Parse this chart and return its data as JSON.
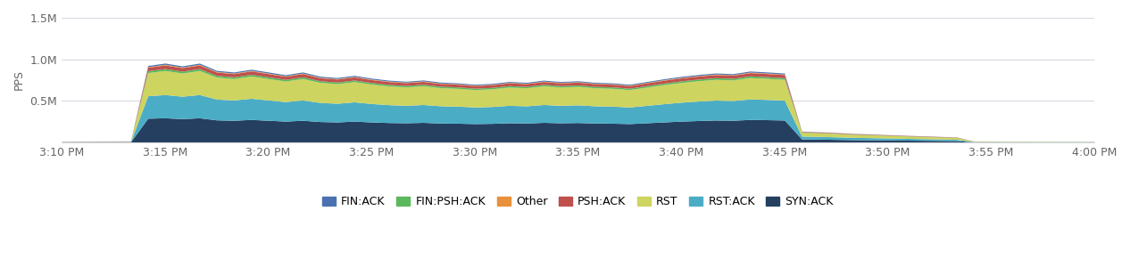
{
  "ylabel": "PPS",
  "ylim": [
    0,
    1500000
  ],
  "yticks": [
    0,
    500000,
    1000000,
    1500000
  ],
  "ytick_labels": [
    "",
    "0.5M",
    "1.0M",
    "1.5M"
  ],
  "background_color": "#ffffff",
  "grid_color": "#d8d8e0",
  "time_labels": [
    "3:10 PM",
    "3:15 PM",
    "3:20 PM",
    "3:25 PM",
    "3:30 PM",
    "3:35 PM",
    "3:40 PM",
    "3:45 PM",
    "3:50 PM",
    "3:55 PM",
    "4:00 PM"
  ],
  "series_order": [
    "SYN:ACK",
    "RST:ACK",
    "RST",
    "FIN:PSH:ACK",
    "PSH:ACK",
    "Other",
    "FIN:ACK"
  ],
  "colors": {
    "FIN:ACK": "#4a72b0",
    "FIN:PSH:ACK": "#5cb85c",
    "Other": "#e8913a",
    "PSH:ACK": "#c0504d",
    "RST": "#cdd45f",
    "RST:ACK": "#4bacc6",
    "SYN:ACK": "#243f60"
  },
  "legend_order": [
    "FIN:ACK",
    "FIN:PSH:ACK",
    "Other",
    "PSH:ACK",
    "RST",
    "RST:ACK",
    "SYN:ACK"
  ],
  "x_values": [
    0,
    1,
    2,
    3,
    4,
    5,
    6,
    7,
    8,
    9,
    10,
    11,
    12,
    13,
    14,
    15,
    16,
    17,
    18,
    19,
    20,
    21,
    22,
    23,
    24,
    25,
    26,
    27,
    28,
    29,
    30,
    31,
    32,
    33,
    34,
    35,
    36,
    37,
    38,
    39,
    40,
    41,
    42,
    43,
    44,
    45,
    46,
    47,
    48,
    49,
    50,
    51,
    52,
    53,
    54,
    55,
    56,
    57,
    58,
    59,
    60
  ],
  "data": {
    "SYN:ACK": [
      4000,
      4500,
      5000,
      5500,
      6000,
      290000,
      295000,
      285000,
      295000,
      270000,
      265000,
      275000,
      265000,
      255000,
      265000,
      250000,
      245000,
      255000,
      245000,
      238000,
      235000,
      240000,
      232000,
      230000,
      225000,
      228000,
      235000,
      232000,
      240000,
      235000,
      238000,
      232000,
      230000,
      225000,
      235000,
      245000,
      255000,
      262000,
      268000,
      265000,
      275000,
      272000,
      268000,
      40000,
      38000,
      35000,
      32000,
      30000,
      28000,
      26000,
      24000,
      22000,
      20000,
      5000,
      4500,
      4000,
      4000,
      4000,
      4000,
      4000,
      4000
    ],
    "RST:ACK": [
      3000,
      3200,
      3400,
      3600,
      3800,
      270000,
      280000,
      270000,
      280000,
      250000,
      245000,
      255000,
      245000,
      235000,
      245000,
      230000,
      225000,
      232000,
      222000,
      215000,
      210000,
      215000,
      208000,
      205000,
      200000,
      203000,
      210000,
      207000,
      215000,
      210000,
      213000,
      207000,
      205000,
      200000,
      210000,
      220000,
      228000,
      235000,
      240000,
      238000,
      247000,
      244000,
      240000,
      35000,
      33000,
      31000,
      28000,
      26000,
      24000,
      22000,
      20000,
      18000,
      16000,
      4000,
      3600,
      3200,
      3000,
      3000,
      3000,
      3000,
      3000
    ],
    "RST": [
      2000,
      2200,
      2400,
      2600,
      2800,
      280000,
      290000,
      280000,
      290000,
      265000,
      258000,
      268000,
      258000,
      248000,
      258000,
      242000,
      237000,
      244000,
      234000,
      226000,
      222000,
      226000,
      218000,
      215000,
      210000,
      213000,
      220000,
      217000,
      225000,
      220000,
      222000,
      217000,
      215000,
      210000,
      220000,
      230000,
      238000,
      245000,
      250000,
      248000,
      258000,
      254000,
      250000,
      45000,
      43000,
      40000,
      36000,
      34000,
      31000,
      28000,
      26000,
      24000,
      22000,
      5000,
      4500,
      4000,
      3500,
      3000,
      3000,
      3000,
      3000
    ],
    "FIN:PSH:ACK": [
      500,
      550,
      600,
      650,
      700,
      22000,
      23000,
      22000,
      23000,
      21000,
      20500,
      21200,
      20500,
      19800,
      20500,
      19200,
      18800,
      19400,
      18600,
      18000,
      17600,
      18000,
      17400,
      17100,
      16700,
      17000,
      17500,
      17200,
      17800,
      17400,
      17600,
      17200,
      17100,
      16700,
      17500,
      18200,
      18900,
      19400,
      19800,
      19600,
      20300,
      20100,
      19800,
      3600,
      3400,
      3200,
      2900,
      2700,
      2500,
      2300,
      2100,
      1900,
      1700,
      400,
      360,
      320,
      280,
      250,
      250,
      250,
      250
    ],
    "PSH:ACK": [
      1500,
      1600,
      1700,
      1800,
      1900,
      42000,
      44000,
      42000,
      44000,
      40000,
      39000,
      40500,
      39000,
      37500,
      39000,
      36700,
      35900,
      37100,
      35400,
      34300,
      33600,
      34300,
      33100,
      32500,
      31800,
      32300,
      33300,
      32700,
      33900,
      33100,
      33500,
      32700,
      32500,
      31800,
      33300,
      34700,
      35900,
      36900,
      37600,
      37300,
      38600,
      38100,
      37600,
      6800,
      6400,
      6100,
      5500,
      5100,
      4700,
      4300,
      3900,
      3500,
      3200,
      750,
      680,
      610,
      540,
      480,
      480,
      480,
      480
    ],
    "Other": [
      300,
      320,
      340,
      360,
      380,
      7500,
      7800,
      7500,
      7800,
      7100,
      6900,
      7200,
      6900,
      6600,
      6900,
      6500,
      6300,
      6600,
      6300,
      6100,
      5900,
      6100,
      5800,
      5700,
      5600,
      5700,
      5900,
      5800,
      6000,
      5800,
      5900,
      5800,
      5700,
      5600,
      5900,
      6100,
      6400,
      6500,
      6700,
      6600,
      6800,
      6700,
      6600,
      1200,
      1100,
      1050,
      950,
      880,
      810,
      740,
      680,
      620,
      560,
      130,
      120,
      110,
      95,
      85,
      85,
      85,
      85
    ],
    "FIN:ACK": [
      800,
      850,
      900,
      950,
      1000,
      14000,
      14500,
      14000,
      14500,
      13200,
      12800,
      13300,
      12800,
      12300,
      12800,
      12100,
      11800,
      12200,
      11700,
      11300,
      11000,
      11300,
      10900,
      10700,
      10400,
      10600,
      10900,
      10700,
      11100,
      10800,
      10900,
      10700,
      10700,
      10400,
      10900,
      11300,
      11800,
      12100,
      12400,
      12200,
      12600,
      12500,
      12200,
      2200,
      2100,
      1950,
      1750,
      1650,
      1500,
      1380,
      1260,
      1140,
      1030,
      240,
      220,
      200,
      175,
      155,
      155,
      155,
      155
    ]
  }
}
